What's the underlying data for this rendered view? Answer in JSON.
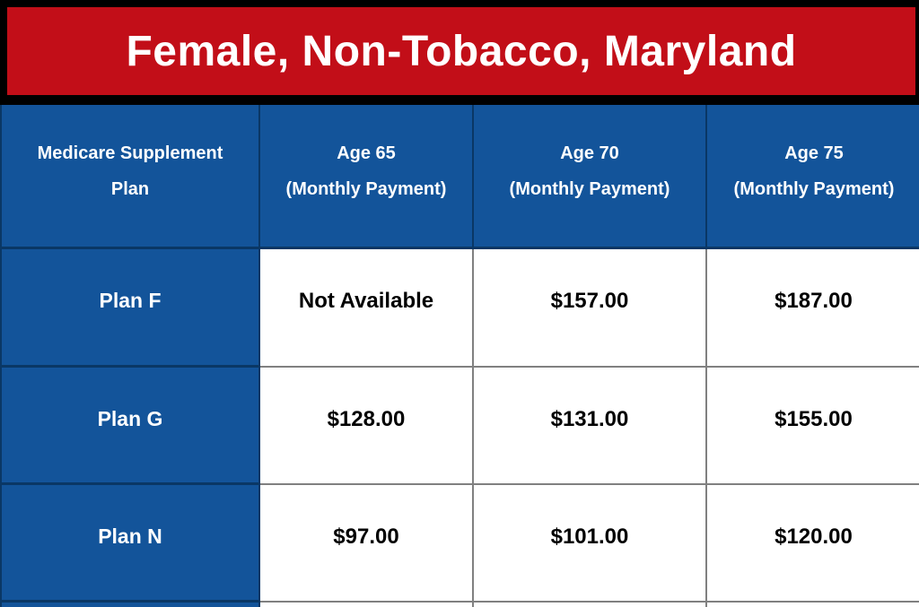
{
  "banner": {
    "title": "Female, Non-Tobacco, Maryland"
  },
  "table": {
    "header": {
      "plan_col_line1": "Medicare Supplement",
      "plan_col_line2": "Plan",
      "age_cols": [
        {
          "line1": "Age 65",
          "line2": "(Monthly Payment)"
        },
        {
          "line1": "Age 70",
          "line2": "(Monthly Payment)"
        },
        {
          "line1": "Age 75",
          "line2": "(Monthly Payment)"
        }
      ]
    },
    "rows": [
      {
        "plan": "Plan F",
        "values": [
          "Not Available",
          "$157.00",
          "$187.00"
        ]
      },
      {
        "plan": "Plan G",
        "values": [
          "$128.00",
          "$131.00",
          "$155.00"
        ]
      },
      {
        "plan": "Plan N",
        "values": [
          "$97.00",
          "$101.00",
          "$120.00"
        ]
      }
    ]
  },
  "chart_data": {
    "type": "table",
    "title": "Female, Non-Tobacco, Maryland",
    "columns": [
      "Medicare Supplement Plan",
      "Age 65 (Monthly Payment)",
      "Age 70 (Monthly Payment)",
      "Age 75 (Monthly Payment)"
    ],
    "rows": [
      [
        "Plan F",
        "Not Available",
        "$157.00",
        "$187.00"
      ],
      [
        "Plan G",
        "$128.00",
        "$131.00",
        "$155.00"
      ],
      [
        "Plan N",
        "$97.00",
        "$101.00",
        "$120.00"
      ]
    ]
  },
  "colors": {
    "banner-bg": "#C20E18",
    "banner-border": "#000000",
    "banner-text": "#FFFFFF",
    "cell-blue": "#13549A",
    "navy-line": "#0A3765",
    "gray-line": "#808080"
  }
}
